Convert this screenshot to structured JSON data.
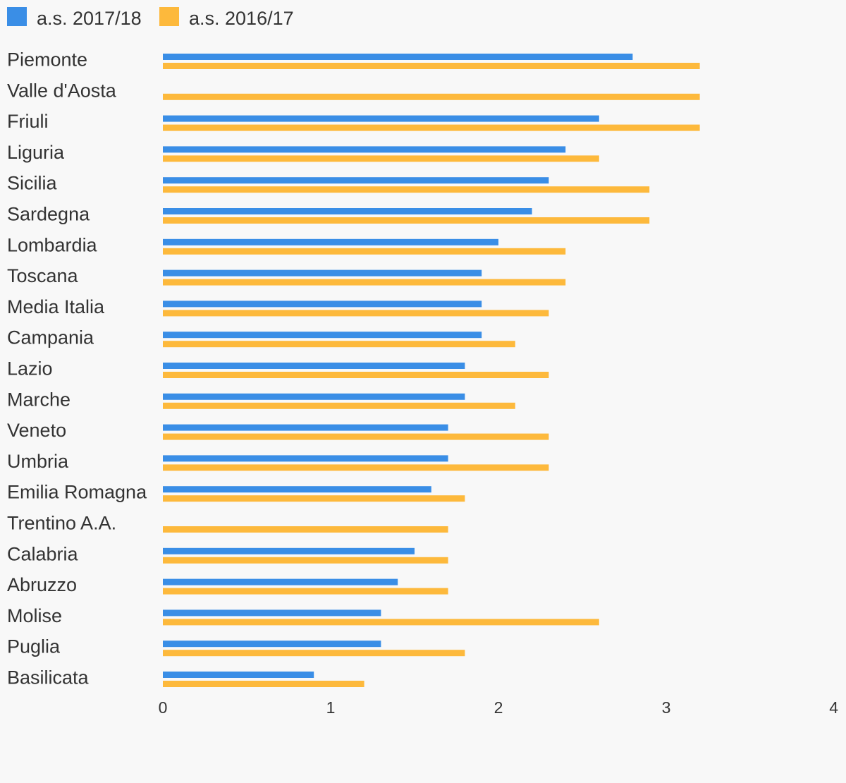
{
  "chart_data": {
    "type": "bar",
    "orientation": "horizontal",
    "title": "",
    "xlabel": "",
    "ylabel": "",
    "xlim": [
      0,
      4
    ],
    "ticks": [
      0,
      1,
      2,
      3,
      4
    ],
    "grid": false,
    "legend_position": "top-left",
    "categories": [
      "Piemonte",
      "Valle d'Aosta",
      "Friuli",
      "Liguria",
      "Sicilia",
      "Sardegna",
      "Lombardia",
      "Toscana",
      "Media Italia",
      "Campania",
      "Lazio",
      "Marche",
      "Veneto",
      "Umbria",
      "Emilia Romagna",
      "Trentino A.A.",
      "Calabria",
      "Abruzzo",
      "Molise",
      "Puglia",
      "Basilicata"
    ],
    "series": [
      {
        "name": "a.s. 2017/18",
        "color": "#3a8ee6",
        "values": [
          2.8,
          null,
          2.6,
          2.4,
          2.3,
          2.2,
          2.0,
          1.9,
          1.9,
          1.9,
          1.8,
          1.8,
          1.7,
          1.7,
          1.6,
          null,
          1.5,
          1.4,
          1.3,
          1.3,
          0.9
        ]
      },
      {
        "name": "a.s. 2016/17",
        "color": "#fdb93c",
        "values": [
          3.2,
          3.2,
          3.2,
          2.6,
          2.9,
          2.9,
          2.4,
          2.4,
          2.3,
          2.1,
          2.3,
          2.1,
          2.3,
          2.3,
          1.8,
          1.7,
          1.7,
          1.7,
          2.6,
          1.8,
          1.2
        ]
      }
    ]
  }
}
